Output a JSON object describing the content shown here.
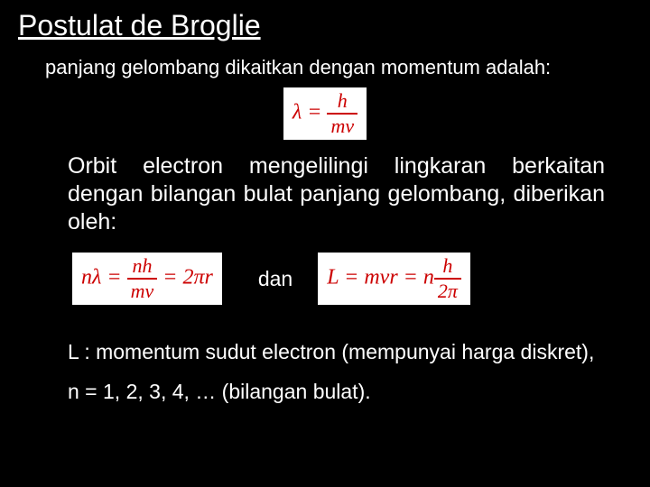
{
  "title": "Postulat de Broglie",
  "para1": "panjang gelombang dikaitkan dengan momentum adalah:",
  "eq1": {
    "lhs": "λ",
    "eq": " = ",
    "num": "h",
    "den": "mv"
  },
  "para2": "Orbit electron mengelilingi lingkaran berkaitan dengan bilangan bulat panjang gelombang, diberikan oleh:",
  "eq2": {
    "lhs": "nλ",
    "eq": " = ",
    "num": "nh",
    "den": "mv",
    "eq2": " = ",
    "rhs": "2πr"
  },
  "dan": "dan",
  "eq3": {
    "lhs": "L",
    "eq": " = ",
    "mid": "mvr",
    "eq2": " = ",
    "nprefix": "n",
    "num": "h",
    "den": "2π"
  },
  "para3": "L : momentum sudut electron  (mempunyai harga diskret),",
  "para4": "n = 1, 2, 3, 4, … (bilangan bulat)."
}
